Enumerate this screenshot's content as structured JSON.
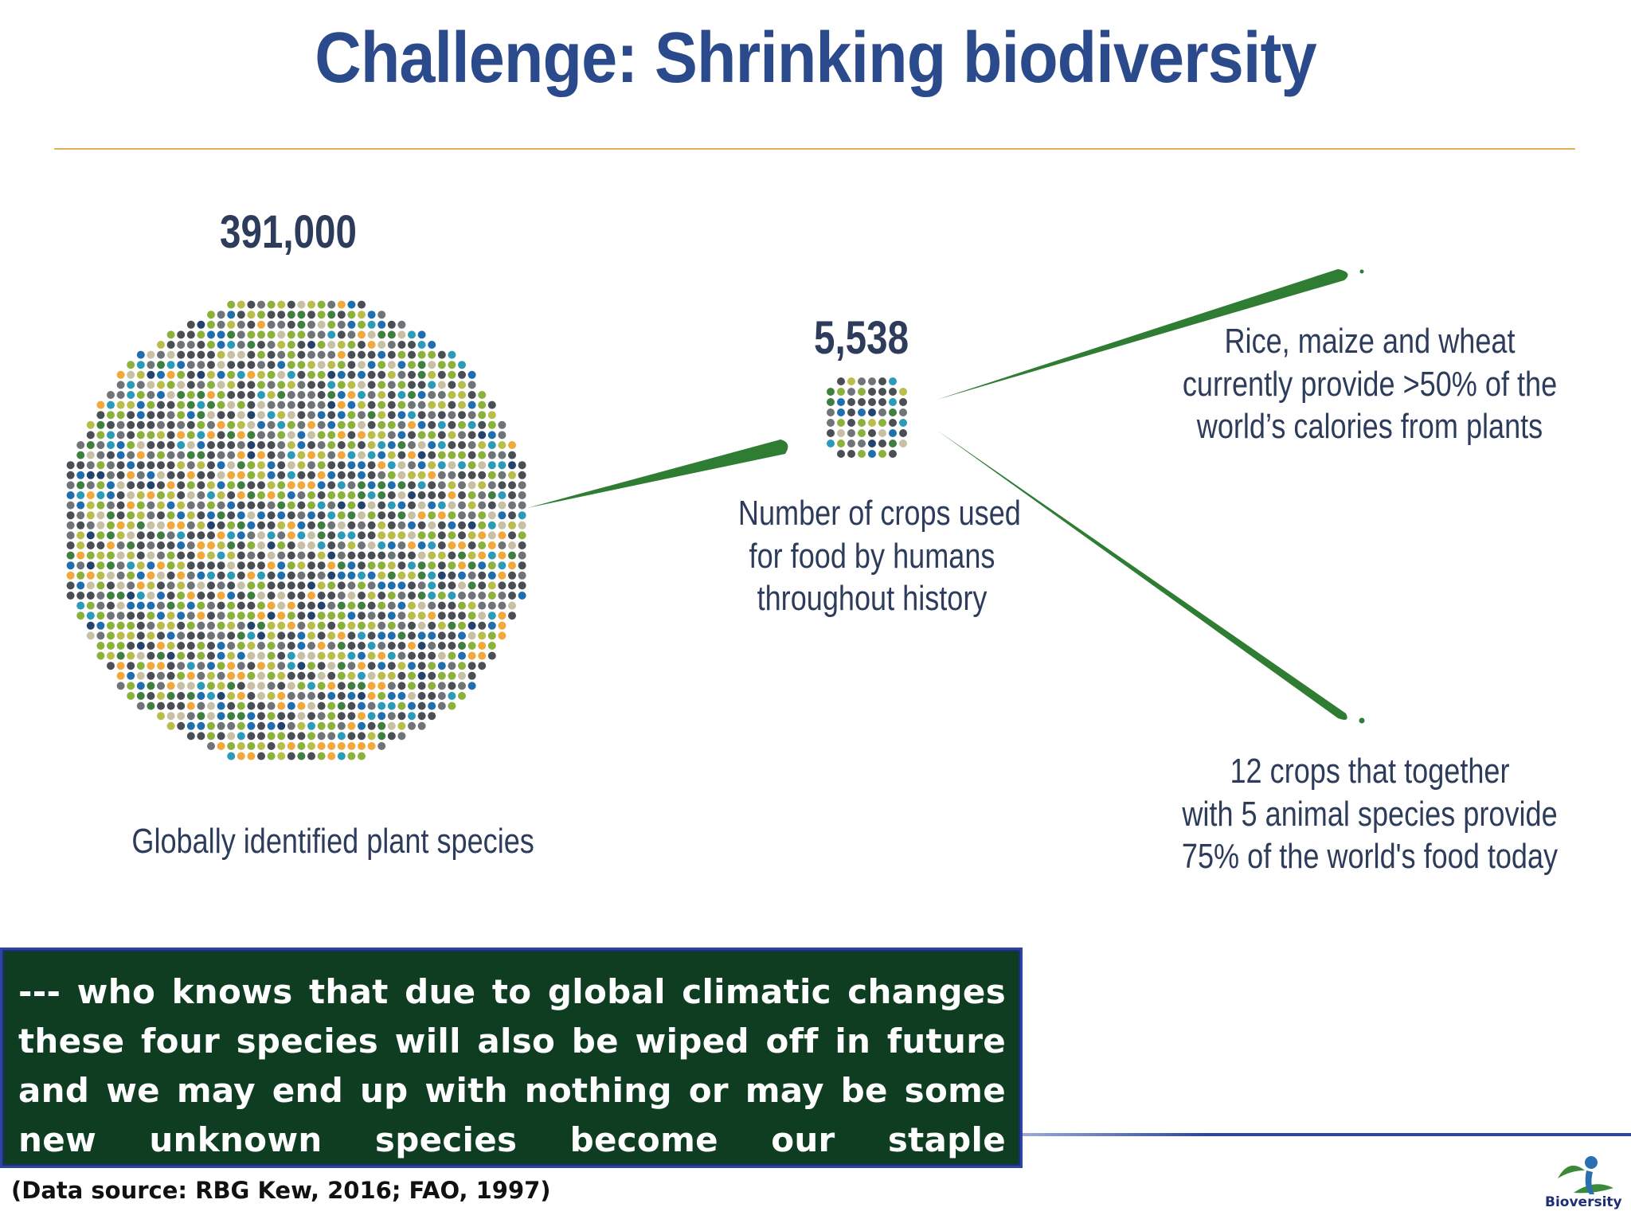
{
  "title": "Challenge: Shrinking biodiversity",
  "plant_species": {
    "value": "391,000",
    "label": "Globally identified plant species"
  },
  "food_crops": {
    "value": "5,538",
    "label_lines": [
      "Number of crops used",
      "for food by humans",
      "throughout history"
    ]
  },
  "staple_crops": {
    "label_lines": [
      "Rice, maize and wheat",
      "currently provide >50% of the",
      "world’s calories from plants"
    ]
  },
  "food_today": {
    "label_lines": [
      "12 crops that together",
      "with 5 animal species provide",
      "75% of the world's food today"
    ]
  },
  "callout": {
    "text": "--- who knows that due to global climatic changes these four species will also be wiped off in future and we may end up with nothing or may be some new unknown species become our staple foods!!!!!!!!!!"
  },
  "source": "(Data source: RBG Kew, 2016; FAO, 1997)",
  "logo": {
    "name": "bioversity-logo-icon",
    "text": "Bioversity"
  },
  "colors": {
    "title": "#2b4a8c",
    "rule": "#e2b15a",
    "callout_bg": "#0e3d22",
    "leaf_green": "#2e7d32",
    "dot_palette": [
      "#4a4f55",
      "#6f7479",
      "#8bb33c",
      "#b9be4a",
      "#1f6fb0",
      "#2a9bb8",
      "#f2a83a",
      "#c7c0a4",
      "#3f7f3f",
      "#23436f"
    ]
  }
}
